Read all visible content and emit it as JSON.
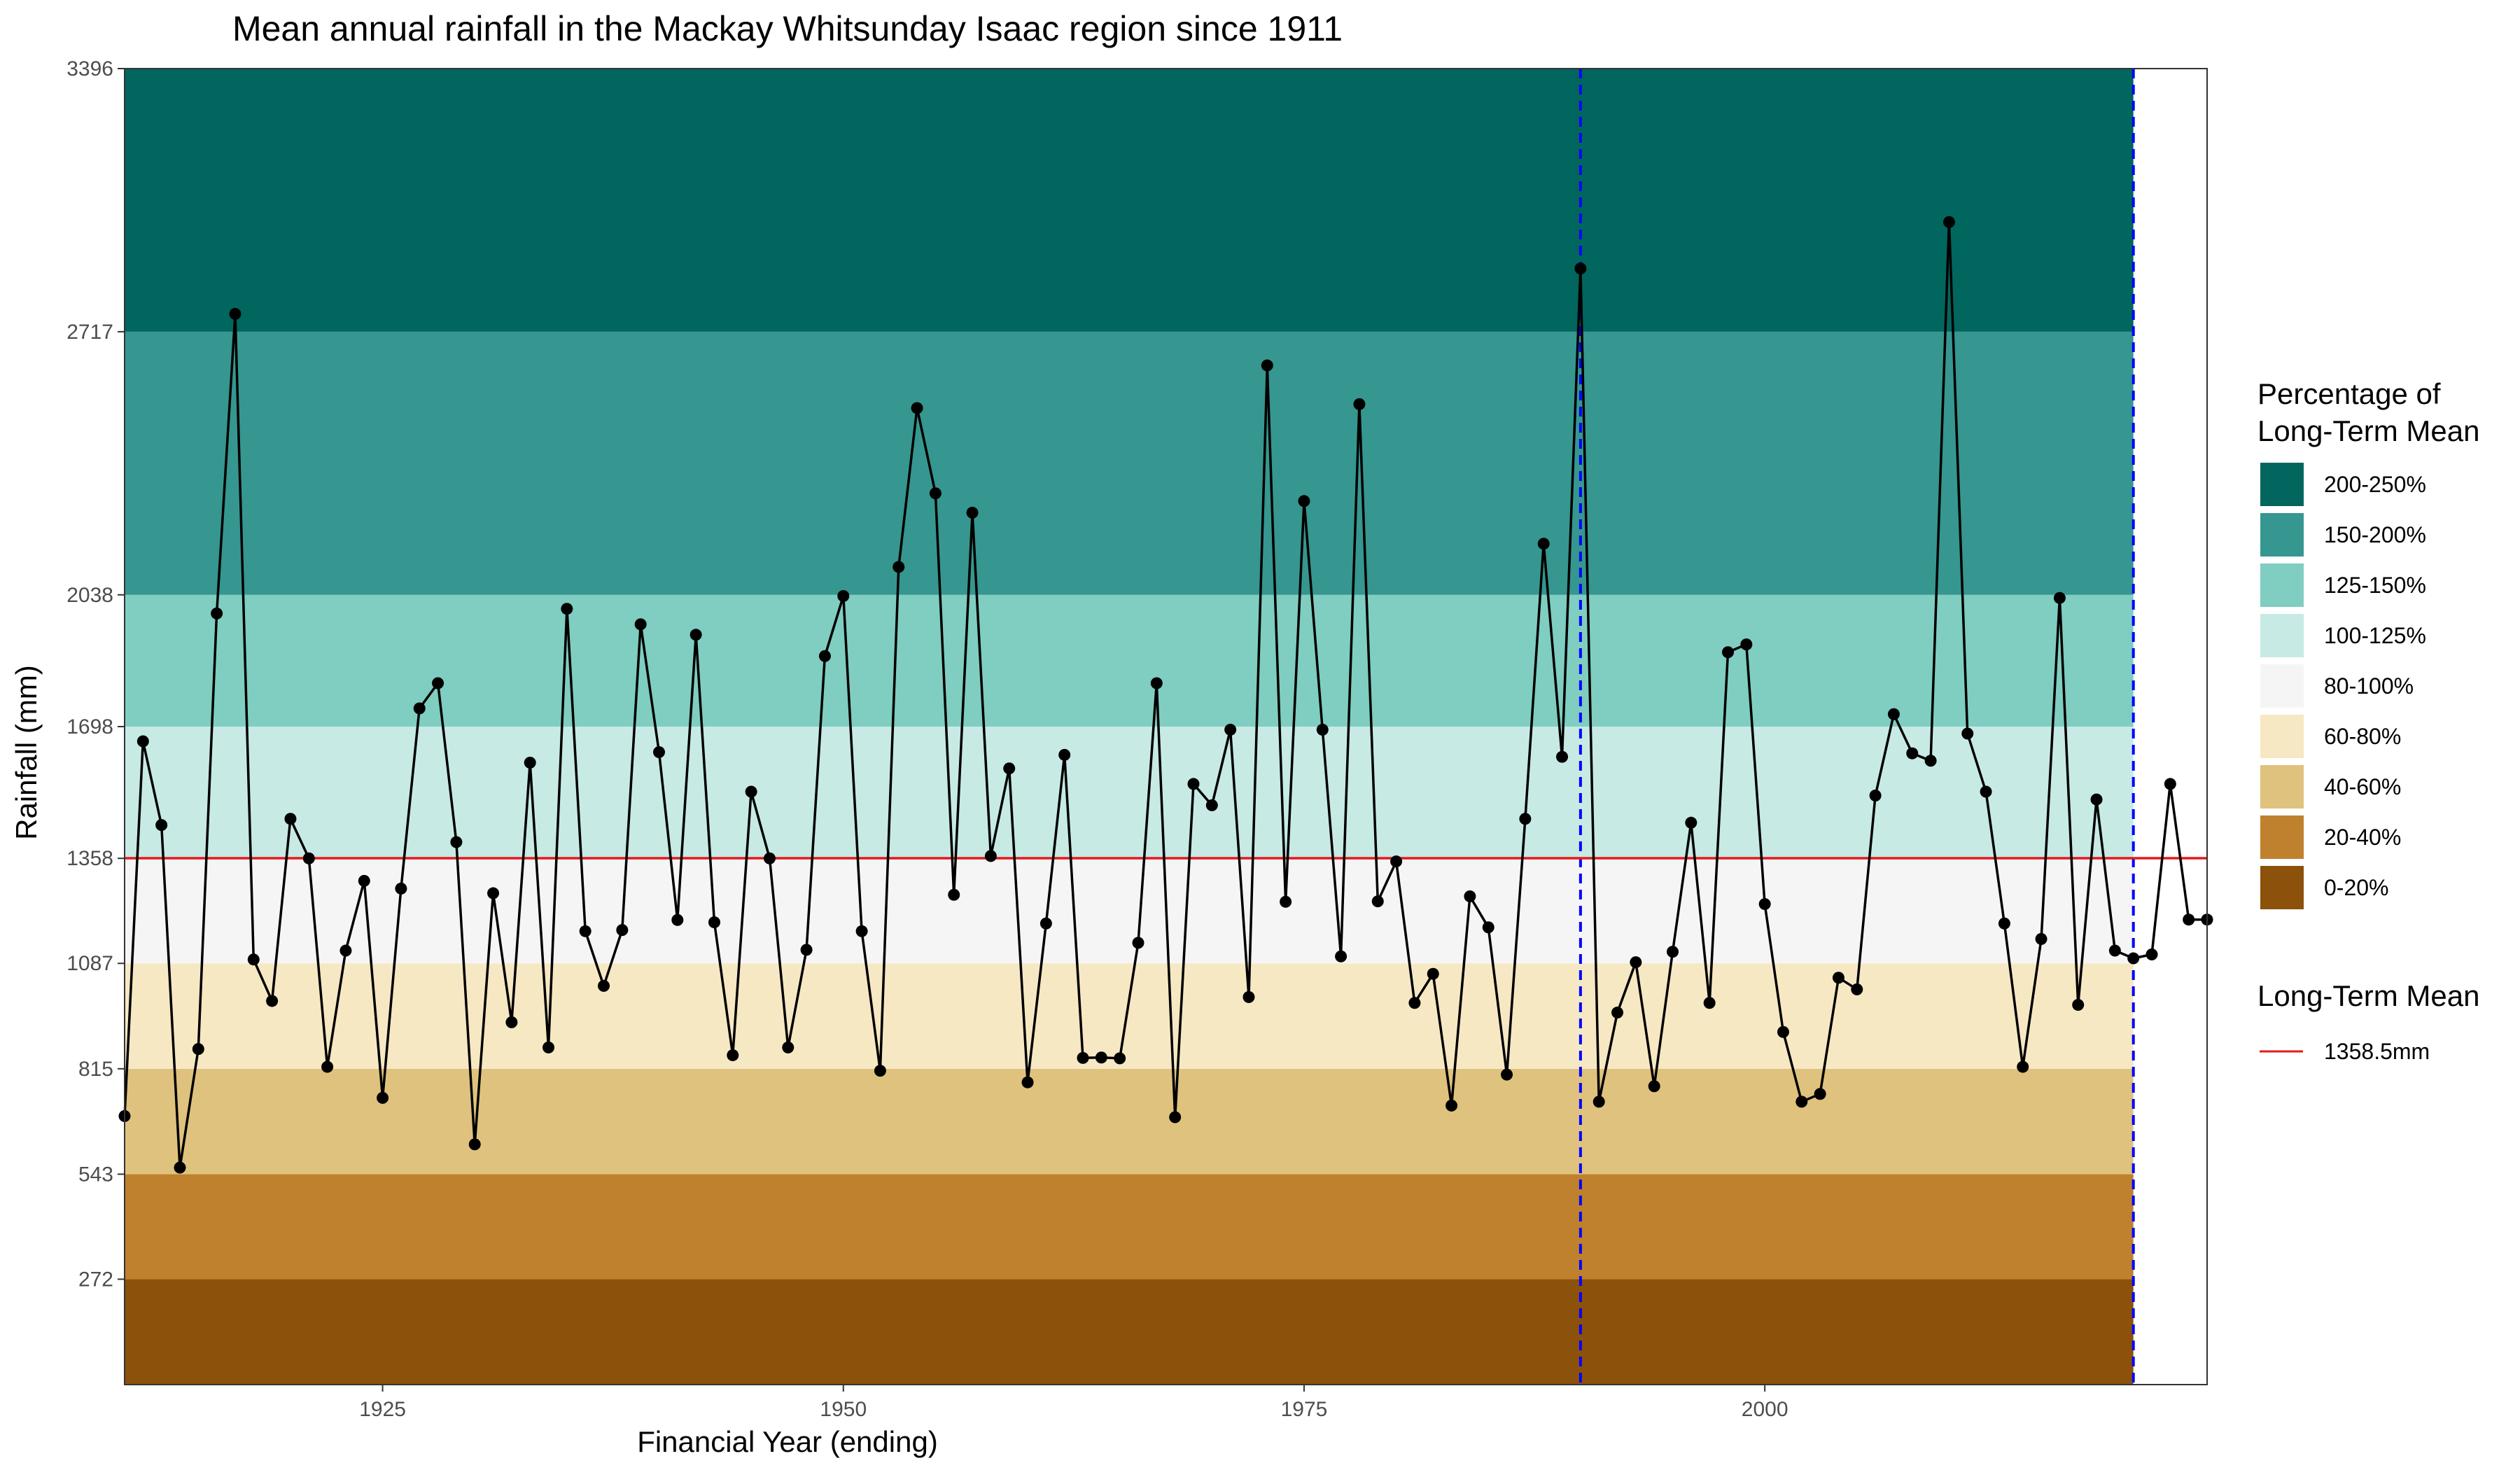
{
  "chart_data": {
    "type": "line",
    "title": "Mean annual rainfall in the Mackay Whitsunday Isaac region since 1911",
    "xlabel": "Financial Year (ending)",
    "ylabel": "Rainfall (mm)",
    "xlim": [
      1911,
      2024
    ],
    "ylim": [
      0,
      3396
    ],
    "x_ticks": [
      1925,
      1950,
      1975,
      2000
    ],
    "y_ticks": [
      272,
      543,
      815,
      1087,
      1358,
      1698,
      2038,
      2717,
      3396
    ],
    "grid": false,
    "background_bands": [
      {
        "from": 0,
        "to": 272,
        "label": "0-20%",
        "color": "#8c510a"
      },
      {
        "from": 272,
        "to": 543,
        "label": "20-40%",
        "color": "#bf812d"
      },
      {
        "from": 543,
        "to": 815,
        "label": "40-60%",
        "color": "#dfc27d"
      },
      {
        "from": 815,
        "to": 1087,
        "label": "60-80%",
        "color": "#f6e8c3"
      },
      {
        "from": 1087,
        "to": 1358,
        "label": "80-100%",
        "color": "#f5f5f5"
      },
      {
        "from": 1358,
        "to": 1698,
        "label": "100-125%",
        "color": "#c7eae5"
      },
      {
        "from": 1698,
        "to": 2038,
        "label": "125-150%",
        "color": "#80cdc1"
      },
      {
        "from": 2038,
        "to": 2717,
        "label": "150-200%",
        "color": "#35978f"
      },
      {
        "from": 2717,
        "to": 3396,
        "label": "200-250%",
        "color": "#01665e"
      }
    ],
    "bands_x_end": 2020,
    "mean_line": {
      "value": 1358.5,
      "label": "1358.5mm",
      "color": "#e41a1c"
    },
    "vertical_lines": [
      1990,
      2020
    ],
    "vertical_line_color": "#0000ff",
    "legend": {
      "placement": "right",
      "bands_title": "Percentage of Long-Term Mean",
      "bands_order": [
        "200-250%",
        "150-200%",
        "125-150%",
        "100-125%",
        "80-100%",
        "60-80%",
        "40-60%",
        "20-40%",
        "0-20%"
      ],
      "mean_title": "Long-Term Mean"
    },
    "series": [
      {
        "color": "#000000",
        "x": [
          1911,
          1912,
          1913,
          1914,
          1915,
          1916,
          1917,
          1918,
          1919,
          1920,
          1921,
          1922,
          1923,
          1924,
          1925,
          1926,
          1927,
          1928,
          1929,
          1930,
          1931,
          1932,
          1933,
          1934,
          1935,
          1936,
          1937,
          1938,
          1939,
          1940,
          1941,
          1942,
          1943,
          1944,
          1945,
          1946,
          1947,
          1948,
          1949,
          1950,
          1951,
          1952,
          1953,
          1954,
          1955,
          1956,
          1957,
          1958,
          1959,
          1960,
          1961,
          1962,
          1963,
          1964,
          1965,
          1966,
          1967,
          1968,
          1969,
          1970,
          1971,
          1972,
          1973,
          1974,
          1975,
          1976,
          1977,
          1978,
          1979,
          1980,
          1981,
          1982,
          1983,
          1984,
          1985,
          1986,
          1987,
          1988,
          1989,
          1990,
          1991,
          1992,
          1993,
          1994,
          1995,
          1996,
          1997,
          1998,
          1999,
          2000,
          2001,
          2002,
          2003,
          2004,
          2005,
          2006,
          2007,
          2008,
          2009,
          2010,
          2011,
          2012,
          2013,
          2014,
          2015,
          2016,
          2017,
          2018,
          2019,
          2020,
          2021,
          2022,
          2023,
          2024
        ],
        "y": [
          693,
          1660,
          1444,
          560,
          866,
          1990,
          2763,
          1097,
          990,
          1460,
          1358,
          820,
          1120,
          1300,
          740,
          1280,
          1745,
          1810,
          1400,
          620,
          1268,
          935,
          1605,
          870,
          2002,
          1170,
          1029,
          1173,
          1962,
          1632,
          1199,
          1935,
          1193,
          850,
          1530,
          1358,
          870,
          1122,
          1880,
          2035,
          1170,
          810,
          2110,
          2520,
          2300,
          1264,
          2250,
          1364,
          1590,
          780,
          1190,
          1625,
          843,
          844,
          842,
          1140,
          1810,
          690,
          1550,
          1495,
          1690,
          1000,
          2630,
          1246,
          2280,
          1690,
          1105,
          2530,
          1247,
          1350,
          985,
          1060,
          720,
          1260,
          1180,
          800,
          1460,
          2170,
          1620,
          2880,
          730,
          960,
          1090,
          770,
          1117,
          1450,
          985,
          1890,
          1910,
          1240,
          910,
          730,
          750,
          1050,
          1020,
          1520,
          1730,
          1629,
          1610,
          3000,
          1680,
          1530,
          1190,
          820,
          1150,
          2030,
          980,
          1510,
          1120,
          1100,
          1110,
          1550,
          1200,
          1200
        ]
      }
    ]
  }
}
